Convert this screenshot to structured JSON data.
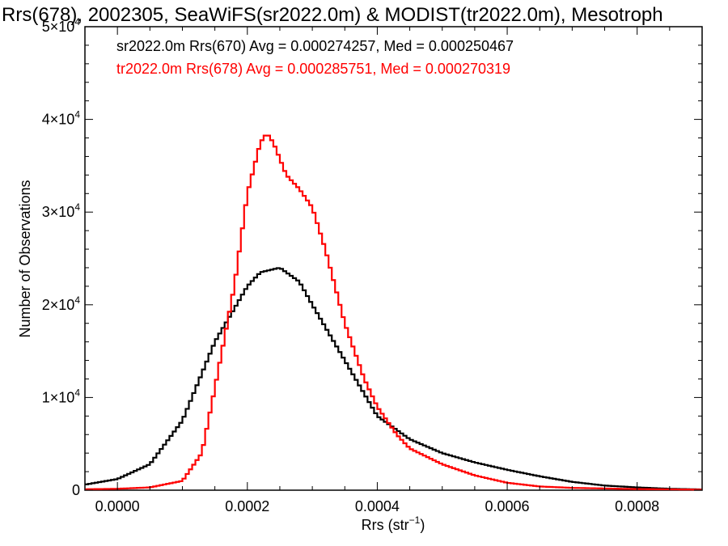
{
  "chart_data": {
    "type": "histogram",
    "title": "Rrs(678), 2002305, SeaWiFS(sr2022.0m) & MODIST(tr2022.0m), Mesotroph",
    "xlabel": {
      "main": "Rrs (str",
      "sup": "−1",
      "tail": ")"
    },
    "ylabel": "Number of Observations",
    "xlim": [
      -5e-05,
      0.0009
    ],
    "ylim": [
      0,
      50000
    ],
    "x_ticks": [
      {
        "value": 0.0,
        "label": "0.0000"
      },
      {
        "value": 0.0002,
        "label": "0.0002"
      },
      {
        "value": 0.0004,
        "label": "0.0004"
      },
      {
        "value": 0.0006,
        "label": "0.0006"
      },
      {
        "value": 0.0008,
        "label": "0.0008"
      }
    ],
    "y_ticks": [
      {
        "value": 0,
        "label": "0",
        "exp": ""
      },
      {
        "value": 10000,
        "label": "1×10",
        "exp": "4"
      },
      {
        "value": 20000,
        "label": "2×10",
        "exp": "4"
      },
      {
        "value": 30000,
        "label": "3×10",
        "exp": "4"
      },
      {
        "value": 40000,
        "label": "4×10",
        "exp": "4"
      },
      {
        "value": 50000,
        "label": "5×10",
        "exp": "4"
      }
    ],
    "grid": false,
    "legend_position": "top-left",
    "series": [
      {
        "legend": "sr2022.0m Rrs(670) Avg = 0.000274257, Med = 0.000250467",
        "color": "#000000",
        "points": [
          [
            -5e-05,
            600
          ],
          [
            0.0,
            1200
          ],
          [
            5e-05,
            2800
          ],
          [
            0.0001,
            7500
          ],
          [
            0.00015,
            16000
          ],
          [
            0.0002,
            22000
          ],
          [
            0.00022,
            23500
          ],
          [
            0.00025,
            24000
          ],
          [
            0.00028,
            22500
          ],
          [
            0.0003,
            20000
          ],
          [
            0.00035,
            14000
          ],
          [
            0.0004,
            8000
          ],
          [
            0.00045,
            5500
          ],
          [
            0.0005,
            4000
          ],
          [
            0.00055,
            3000
          ],
          [
            0.0006,
            2200
          ],
          [
            0.00065,
            1500
          ],
          [
            0.0007,
            900
          ],
          [
            0.00075,
            500
          ],
          [
            0.0008,
            300
          ],
          [
            0.00085,
            150
          ],
          [
            0.0009,
            80
          ]
        ]
      },
      {
        "legend": "tr2022.0m Rrs(678) Avg = 0.000285751, Med = 0.000270319",
        "color": "#ff0000",
        "points": [
          [
            -5e-05,
            100
          ],
          [
            0.0,
            150
          ],
          [
            5e-05,
            300
          ],
          [
            0.0001,
            1000
          ],
          [
            0.00013,
            4000
          ],
          [
            0.00015,
            11000
          ],
          [
            0.00018,
            22000
          ],
          [
            0.0002,
            32000
          ],
          [
            0.00022,
            37500
          ],
          [
            0.00023,
            38500
          ],
          [
            0.00024,
            37500
          ],
          [
            0.00026,
            34000
          ],
          [
            0.00028,
            32500
          ],
          [
            0.0003,
            30500
          ],
          [
            0.00032,
            26000
          ],
          [
            0.00035,
            18000
          ],
          [
            0.00038,
            12000
          ],
          [
            0.0004,
            9000
          ],
          [
            0.00043,
            6000
          ],
          [
            0.00045,
            4500
          ],
          [
            0.0005,
            2800
          ],
          [
            0.00055,
            1600
          ],
          [
            0.0006,
            800
          ],
          [
            0.00065,
            400
          ],
          [
            0.0007,
            250
          ],
          [
            0.0008,
            120
          ],
          [
            0.0009,
            60
          ]
        ]
      }
    ]
  }
}
